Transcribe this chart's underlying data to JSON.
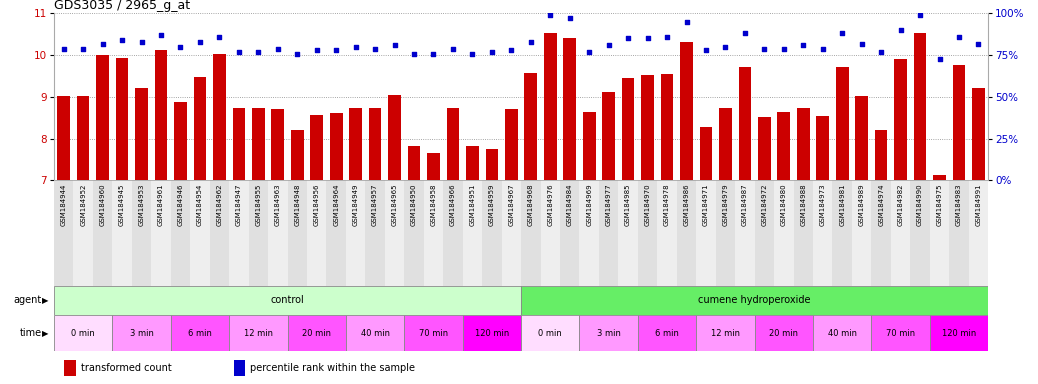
{
  "title": "GDS3035 / 2965_g_at",
  "bar_color": "#cc0000",
  "dot_color": "#0000cc",
  "ylim_left": [
    7,
    11
  ],
  "ylim_right": [
    0,
    100
  ],
  "yticks_left": [
    7,
    8,
    9,
    10,
    11
  ],
  "yticks_right": [
    0,
    25,
    50,
    75,
    100
  ],
  "samples": [
    "GSM184944",
    "GSM184952",
    "GSM184960",
    "GSM184945",
    "GSM184953",
    "GSM184961",
    "GSM184946",
    "GSM184954",
    "GSM184962",
    "GSM184947",
    "GSM184955",
    "GSM184963",
    "GSM184948",
    "GSM184956",
    "GSM184964",
    "GSM184949",
    "GSM184957",
    "GSM184965",
    "GSM184950",
    "GSM184958",
    "GSM184966",
    "GSM184951",
    "GSM184959",
    "GSM184967",
    "GSM184968",
    "GSM184976",
    "GSM184984",
    "GSM184969",
    "GSM184977",
    "GSM184985",
    "GSM184970",
    "GSM184978",
    "GSM184986",
    "GSM184971",
    "GSM184979",
    "GSM184987",
    "GSM184972",
    "GSM184980",
    "GSM184988",
    "GSM184973",
    "GSM184981",
    "GSM184989",
    "GSM184974",
    "GSM184982",
    "GSM184990",
    "GSM184975",
    "GSM184983",
    "GSM184991"
  ],
  "bar_values": [
    9.02,
    9.02,
    10.01,
    9.93,
    9.22,
    10.12,
    8.88,
    9.47,
    10.02,
    8.73,
    8.73,
    8.72,
    8.22,
    8.56,
    8.62,
    8.74,
    8.74,
    9.04,
    7.82,
    7.66,
    8.73,
    7.82,
    7.75,
    8.72,
    9.57,
    10.52,
    10.42,
    8.64,
    9.12,
    9.46,
    9.52,
    9.56,
    10.32,
    8.27,
    8.73,
    9.72,
    8.52,
    8.64,
    8.73,
    8.55,
    9.72,
    9.03,
    8.22,
    9.92,
    10.52,
    7.12,
    9.77,
    9.22
  ],
  "dot_values": [
    79,
    79,
    82,
    84,
    83,
    87,
    80,
    83,
    86,
    77,
    77,
    79,
    76,
    78,
    78,
    80,
    79,
    81,
    76,
    76,
    79,
    76,
    77,
    78,
    83,
    99,
    97,
    77,
    81,
    85,
    85,
    86,
    95,
    78,
    80,
    88,
    79,
    79,
    81,
    79,
    88,
    82,
    77,
    90,
    99,
    73,
    86,
    82
  ],
  "agent_groups": [
    {
      "label": "control",
      "start": 0,
      "end": 24,
      "color": "#ccffcc"
    },
    {
      "label": "cumene hydroperoxide",
      "start": 24,
      "end": 48,
      "color": "#66ee66"
    }
  ],
  "time_groups": [
    {
      "label": "0 min",
      "start": 0,
      "end": 3,
      "color": "#ffddff"
    },
    {
      "label": "3 min",
      "start": 3,
      "end": 6,
      "color": "#ff99ff"
    },
    {
      "label": "6 min",
      "start": 6,
      "end": 9,
      "color": "#ff55ff"
    },
    {
      "label": "12 min",
      "start": 9,
      "end": 12,
      "color": "#ff99ff"
    },
    {
      "label": "20 min",
      "start": 12,
      "end": 15,
      "color": "#ff55ff"
    },
    {
      "label": "40 min",
      "start": 15,
      "end": 18,
      "color": "#ff99ff"
    },
    {
      "label": "70 min",
      "start": 18,
      "end": 21,
      "color": "#ff55ff"
    },
    {
      "label": "120 min",
      "start": 21,
      "end": 24,
      "color": "#ff00ff"
    },
    {
      "label": "0 min",
      "start": 24,
      "end": 27,
      "color": "#ffddff"
    },
    {
      "label": "3 min",
      "start": 27,
      "end": 30,
      "color": "#ff99ff"
    },
    {
      "label": "6 min",
      "start": 30,
      "end": 33,
      "color": "#ff55ff"
    },
    {
      "label": "12 min",
      "start": 33,
      "end": 36,
      "color": "#ff99ff"
    },
    {
      "label": "20 min",
      "start": 36,
      "end": 39,
      "color": "#ff55ff"
    },
    {
      "label": "40 min",
      "start": 39,
      "end": 42,
      "color": "#ff99ff"
    },
    {
      "label": "70 min",
      "start": 42,
      "end": 45,
      "color": "#ff55ff"
    },
    {
      "label": "120 min",
      "start": 45,
      "end": 48,
      "color": "#ff00ff"
    }
  ],
  "legend_items": [
    {
      "label": "transformed count",
      "color": "#cc0000"
    },
    {
      "label": "percentile rank within the sample",
      "color": "#0000cc"
    }
  ],
  "bg_color": "white",
  "grid_color": "#888888",
  "spine_color": "#aaaaaa"
}
